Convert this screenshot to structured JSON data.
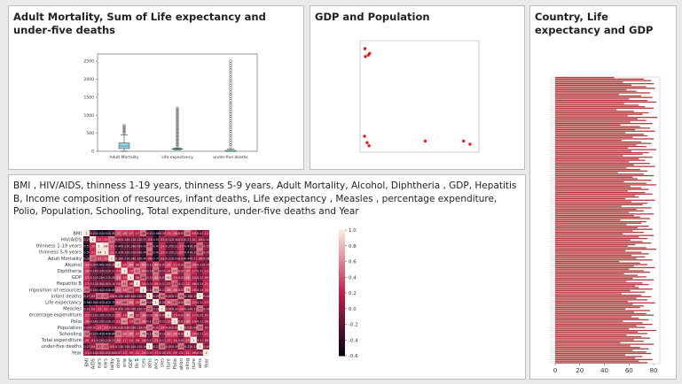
{
  "cards": {
    "boxplot": {
      "title": "Adult Mortality, Sum of Life expectancy and under-five deaths"
    },
    "scatter": {
      "title": "GDP and Population"
    },
    "heatmap": {
      "title": "BMI , HIV/AIDS, thinness 1-19 years, thinness 5-9 years, Adult Mortality, Alcohol, Diphtheria , GDP, Hepatitis B, Income composition of resources, infant deaths, Life expectancy , Measles , percentage expenditure, Polio, Population, Schooling, Total expenditure, under-five deaths and Year"
    },
    "hbar": {
      "title": "Country, Life expectancy and GDP"
    }
  },
  "colors": {
    "box_fill": "#9bd3e6",
    "box_median": "#2aa198",
    "scatter_point": "#e8191c",
    "bar_fill": "#b23b3e",
    "heat_low": "#03051a",
    "heat_mid": "#c1204b",
    "heat_high": "#faebdd"
  },
  "chart_data": [
    {
      "type": "box",
      "categories": [
        "Adult Mortality",
        "Life expectancy",
        "under-five deaths"
      ],
      "yticks": [
        "0",
        "500",
        "1000",
        "1500",
        "2000",
        "2500"
      ],
      "ylim": [
        0,
        2700
      ],
      "boxes": [
        {
          "q1": 75,
          "median": 145,
          "q3": 230,
          "low": 1,
          "high": 460,
          "outlier_max": 720
        },
        {
          "q1": 60,
          "median": 70,
          "q3": 75,
          "low": 40,
          "high": 90,
          "outlier_max": 1200
        },
        {
          "q1": 0,
          "median": 3,
          "q3": 25,
          "low": 0,
          "high": 60,
          "outlier_max": 2500
        }
      ]
    },
    {
      "type": "scatter",
      "points": [
        [
          0.08,
          125000
        ],
        [
          0.12,
          120000
        ],
        [
          0.35,
          121000
        ],
        [
          0.45,
          122000
        ],
        [
          0.05,
          70000
        ],
        [
          0.25,
          66000
        ],
        [
          0.4,
          64000
        ],
        [
          4.8,
          67000
        ],
        [
          7.8,
          67000
        ],
        [
          8.3,
          65000
        ]
      ],
      "xlim": [
        -0.3,
        9
      ],
      "ylim": [
        60000,
        130000
      ]
    },
    {
      "type": "heatmap",
      "variables": [
        "BMI",
        "HIV/AIDS",
        "thinness 1-19 years",
        "thinness 5-9 years",
        "Adult Mortality",
        "Alcohol",
        "Diphtheria",
        "GDP",
        "Hepatitis B",
        "Income composition of resources",
        "infant deaths",
        "Life expectancy",
        "Measles",
        "percentage expenditure",
        "Polio",
        "Population",
        "Schooling",
        "Total expenditure",
        "under-five deaths",
        "Year"
      ],
      "row_labels": [
        "BMI",
        "HIV/AIDS",
        "thinness 1-19 years",
        "thinness 5-9 years",
        "Adult Mortality",
        "Alcohol",
        "Diphtheria",
        "GDP",
        "Hepatitis B",
        "mposition of resources",
        "infant deaths",
        "Life expectancy",
        "Measles",
        "ercentage expenditure",
        "Polio",
        "Population",
        "Schooling",
        "Total expenditure",
        "under-five deaths",
        "Year"
      ],
      "col_labels": [
        "BMI",
        "AIDS",
        "ears",
        "ears",
        "tality",
        "ohol",
        "eria",
        "GDP",
        "tis B",
        "rces",
        "aths",
        "ancy",
        "sles",
        "iture",
        "Polio",
        "ation",
        "oling",
        "iture",
        "aths",
        "Year"
      ],
      "colorbar_ticks": [
        "1.0",
        "0.8",
        "0.6",
        "0.4",
        "0.2",
        "0.0",
        "-0.2",
        "-0.4",
        "-0.6"
      ],
      "vmin": -0.6,
      "vmax": 1.0,
      "values": [
        [
          1,
          -0.24,
          -0.53,
          -0.54,
          -0.39,
          0.33,
          0.28,
          0.27,
          0.17,
          0.48,
          -0.23,
          -0.56,
          -0.18,
          0.23,
          0.28,
          -0.07,
          0.54,
          0.19,
          -0.24,
          0.11
        ],
        [
          -0.24,
          1,
          0.2,
          0.21,
          0.52,
          -0.04,
          -0.16,
          -0.12,
          -0.12,
          -0.19,
          0.03,
          -0.5,
          0.03,
          -0.1,
          -0.16,
          -0.03,
          -0.21,
          0.01,
          0.04,
          -0.14
        ],
        [
          -0.53,
          0.2,
          1,
          0.94,
          0.31,
          -0.4,
          -0.23,
          -0.28,
          -0.09,
          -0.42,
          0.47,
          -0.47,
          0.22,
          -0.25,
          -0.22,
          0.27,
          -0.47,
          -0.2,
          0.47,
          -0.05
        ],
        [
          -0.54,
          0.21,
          0.94,
          1,
          0.31,
          -0.39,
          -0.22,
          -0.27,
          -0.09,
          -0.41,
          0.47,
          -0.47,
          0.22,
          -0.25,
          -0.22,
          0.27,
          -0.47,
          -0.22,
          0.47,
          -0.05
        ],
        [
          -0.39,
          0.52,
          0.31,
          0.31,
          1,
          -0.18,
          -0.27,
          -0.28,
          -0.16,
          -0.44,
          0.08,
          -0.7,
          0.03,
          -0.23,
          -0.27,
          -0.01,
          -0.44,
          -0.11,
          0.09,
          -0.08
        ],
        [
          0.33,
          -0.04,
          -0.4,
          -0.39,
          -0.18,
          1,
          0.2,
          0.44,
          0.08,
          0.45,
          -0.11,
          0.4,
          -0.05,
          0.35,
          0.21,
          -0.03,
          0.55,
          0.3,
          -0.11,
          -0.05
        ],
        [
          0.28,
          -0.16,
          -0.23,
          -0.22,
          -0.27,
          0.2,
          1,
          0.2,
          0.61,
          0.34,
          -0.18,
          0.48,
          -0.14,
          0.14,
          0.67,
          -0.02,
          0.35,
          0.17,
          -0.19,
          0.13
        ],
        [
          0.27,
          -0.12,
          -0.28,
          -0.27,
          -0.28,
          0.44,
          0.2,
          1,
          0.08,
          0.46,
          -0.1,
          0.44,
          -0.07,
          0.9,
          0.19,
          -0.02,
          0.45,
          0.14,
          -0.1,
          0.09
        ],
        [
          0.17,
          -0.12,
          -0.09,
          -0.09,
          -0.16,
          0.08,
          0.61,
          0.08,
          1,
          0.2,
          -0.24,
          0.2,
          -0.12,
          0.02,
          0.48,
          -0.12,
          0.22,
          0.06,
          -0.24,
          0.21
        ],
        [
          0.48,
          -0.19,
          -0.42,
          -0.41,
          -0.44,
          0.45,
          0.34,
          0.46,
          0.2,
          1,
          -0.14,
          0.69,
          -0.13,
          0.38,
          0.36,
          -0.01,
          0.78,
          0.18,
          -0.16,
          0.24
        ],
        [
          -0.23,
          0.03,
          0.47,
          0.47,
          0.08,
          -0.11,
          -0.18,
          -0.1,
          -0.24,
          -0.14,
          1,
          -0.2,
          0.5,
          -0.09,
          -0.17,
          0.56,
          -0.19,
          -0.13,
          1,
          -0.04
        ],
        [
          -0.56,
          -0.5,
          -0.47,
          -0.47,
          -0.7,
          0.4,
          0.48,
          0.44,
          0.2,
          0.69,
          -0.2,
          1,
          -0.16,
          0.38,
          0.47,
          -0.02,
          0.72,
          0.22,
          -0.22,
          0.17
        ],
        [
          -0.18,
          0.03,
          0.22,
          0.22,
          0.03,
          -0.05,
          -0.14,
          -0.07,
          -0.12,
          -0.13,
          0.5,
          -0.16,
          1,
          -0.06,
          -0.14,
          0.24,
          -0.14,
          -0.11,
          0.51,
          -0.08
        ],
        [
          0.23,
          -0.1,
          -0.25,
          -0.25,
          -0.23,
          0.35,
          0.14,
          0.9,
          0.02,
          0.38,
          -0.09,
          0.38,
          -0.06,
          1,
          0.15,
          -0.02,
          0.39,
          0.17,
          -0.09,
          0.03
        ],
        [
          0.28,
          -0.16,
          -0.22,
          -0.22,
          -0.27,
          0.21,
          0.67,
          0.19,
          0.48,
          0.36,
          -0.17,
          0.47,
          -0.14,
          0.15,
          1,
          -0.03,
          0.38,
          0.14,
          -0.19,
          0.09
        ],
        [
          -0.07,
          -0.03,
          0.27,
          0.27,
          -0.01,
          -0.03,
          -0.02,
          -0.02,
          -0.12,
          -0.01,
          0.56,
          -0.02,
          0.24,
          -0.02,
          -0.03,
          1,
          -0.03,
          -0.08,
          0.54,
          0.02
        ],
        [
          0.54,
          -0.21,
          -0.47,
          -0.47,
          -0.44,
          0.55,
          0.35,
          0.45,
          0.22,
          0.78,
          -0.19,
          0.72,
          -0.14,
          0.39,
          0.38,
          -0.03,
          1,
          0.25,
          -0.21,
          0.21
        ],
        [
          0.19,
          0.01,
          -0.2,
          -0.22,
          -0.11,
          0.3,
          0.17,
          0.14,
          0.06,
          0.18,
          -0.13,
          0.22,
          -0.11,
          0.17,
          0.14,
          -0.08,
          0.25,
          1,
          -0.13,
          0.09
        ],
        [
          -0.24,
          0.04,
          0.47,
          0.47,
          0.09,
          -0.11,
          -0.19,
          -0.1,
          -0.24,
          -0.16,
          1,
          -0.22,
          0.51,
          -0.09,
          -0.19,
          0.54,
          -0.21,
          -0.13,
          1,
          -0.04
        ],
        [
          0.11,
          -0.14,
          -0.05,
          -0.05,
          -0.08,
          -0.05,
          0.13,
          0.09,
          0.21,
          0.24,
          -0.04,
          0.17,
          -0.08,
          0.03,
          0.09,
          0.02,
          0.21,
          0.09,
          -0.04,
          1
        ]
      ]
    },
    {
      "type": "bar",
      "orientation": "horizontal",
      "xticks": [
        "0",
        "20",
        "40",
        "60",
        "80"
      ],
      "xlim": [
        0,
        85
      ],
      "values": [
        48,
        72,
        78,
        55,
        80,
        62,
        74,
        81,
        58,
        66,
        77,
        52,
        70,
        79,
        60,
        75,
        82,
        56,
        68,
        73,
        80,
        50,
        64,
        76,
        71,
        59,
        83,
        67,
        74,
        61,
        79,
        53,
        69,
        77,
        65,
        81,
        57,
        72,
        75,
        63,
        80,
        54,
        70,
        78,
        66,
        74,
        59,
        82,
        62,
        76,
        71,
        55,
        79,
        68,
        73,
        60,
        77,
        64,
        81,
        58,
        69,
        75,
        51,
        72,
        80,
        63,
        67,
        78,
        56,
        74,
        82,
        61,
        70,
        76,
        59,
        73,
        79,
        65,
        68,
        57,
        81,
        62,
        75,
        71,
        54,
        78,
        66,
        72,
        60,
        80,
        64,
        69,
        77,
        53,
        74,
        70,
        58,
        76,
        67,
        79,
        63,
        72,
        55,
        80,
        68,
        75,
        61,
        71,
        78,
        65,
        59,
        74,
        82,
        57,
        70,
        76,
        62,
        73,
        66,
        79,
        52,
        69,
        75,
        64,
        81,
        60,
        72,
        77,
        56,
        67,
        74,
        63,
        80,
        58,
        71,
        76,
        65,
        68,
        79,
        61,
        73,
        54,
        70,
        78,
        66,
        75,
        59,
        81,
        63,
        72,
        69,
        57,
        77,
        64,
        74,
        80,
        62,
        68,
        76,
        55,
        71,
        79,
        66,
        73,
        60,
        82,
        67,
        75,
        58,
        70,
        77,
        64,
        72,
        53,
        80,
        61,
        69,
        76,
        63,
        74,
        78,
        57,
        71,
        65,
        79,
        68,
        75
      ]
    }
  ]
}
